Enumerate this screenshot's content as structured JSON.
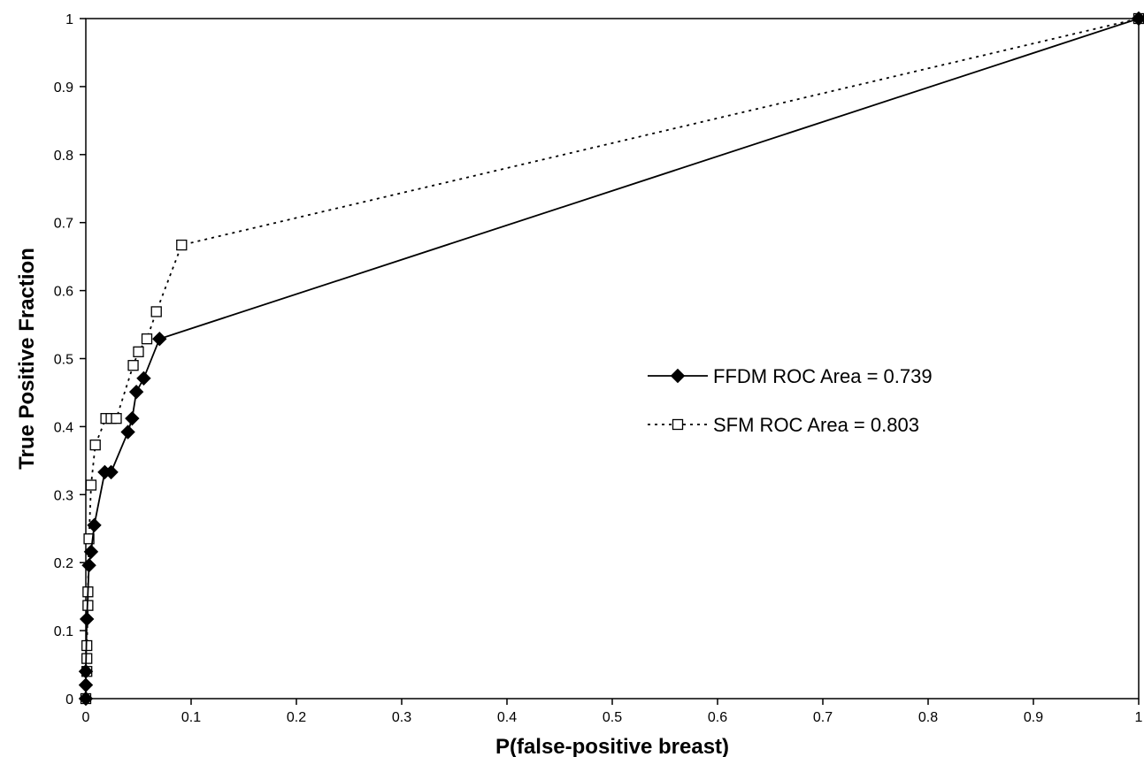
{
  "chart_data": {
    "type": "line",
    "title": "",
    "xlabel": "P(false-positive breast)",
    "ylabel": "True Positive Fraction",
    "xlim": [
      0,
      1
    ],
    "ylim": [
      0,
      1
    ],
    "x_ticks": [
      "0",
      "0.1",
      "0.2",
      "0.3",
      "0.4",
      "0.5",
      "0.6",
      "0.7",
      "0.8",
      "0.9",
      "1"
    ],
    "y_ticks": [
      "0",
      "0.1",
      "0.2",
      "0.3",
      "0.4",
      "0.5",
      "0.6",
      "0.7",
      "0.8",
      "0.9",
      "1"
    ],
    "grid": false,
    "legend_position": "center-right",
    "series": [
      {
        "name": "FFDM ROC Area = 0.739",
        "line_style": "solid",
        "marker": "filled-diamond",
        "color": "#000000",
        "points": [
          [
            0,
            0
          ],
          [
            0.0,
            0.02
          ],
          [
            0.0,
            0.04
          ],
          [
            0.001,
            0.117
          ],
          [
            0.003,
            0.196
          ],
          [
            0.005,
            0.216
          ],
          [
            0.008,
            0.255
          ],
          [
            0.018,
            0.333
          ],
          [
            0.024,
            0.333
          ],
          [
            0.04,
            0.392
          ],
          [
            0.044,
            0.412
          ],
          [
            0.048,
            0.451
          ],
          [
            0.055,
            0.471
          ],
          [
            0.07,
            0.529
          ],
          [
            1.0,
            1.0
          ]
        ]
      },
      {
        "name": "SFM ROC Area = 0.803",
        "line_style": "dotted",
        "marker": "open-square",
        "color": "#000000",
        "points": [
          [
            0,
            0
          ],
          [
            0.001,
            0.04
          ],
          [
            0.001,
            0.059
          ],
          [
            0.001,
            0.078
          ],
          [
            0.002,
            0.137
          ],
          [
            0.002,
            0.157
          ],
          [
            0.003,
            0.235
          ],
          [
            0.005,
            0.314
          ],
          [
            0.009,
            0.373
          ],
          [
            0.019,
            0.412
          ],
          [
            0.024,
            0.412
          ],
          [
            0.029,
            0.412
          ],
          [
            0.045,
            0.49
          ],
          [
            0.05,
            0.51
          ],
          [
            0.058,
            0.529
          ],
          [
            0.067,
            0.569
          ],
          [
            0.091,
            0.667
          ],
          [
            1.0,
            1.0
          ]
        ]
      }
    ]
  }
}
